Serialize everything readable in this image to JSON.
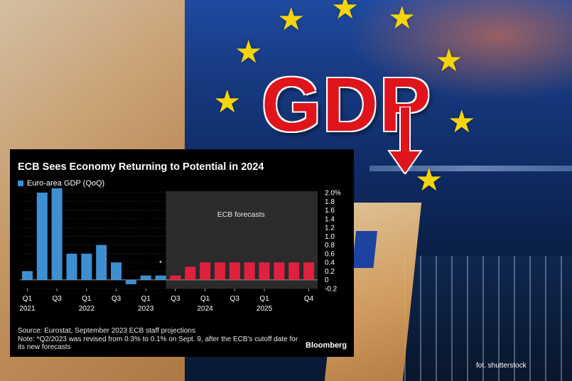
{
  "chart_data": {
    "type": "bar",
    "title": "ECB Sees Economy Returning to Potential in 2024",
    "series": [
      {
        "name": "Euro-area GDP (QoQ)",
        "color": "#3d8fd1",
        "values": [
          0.2,
          2.0,
          2.1,
          0.6,
          0.6,
          0.8,
          0.4,
          -0.1,
          0.1,
          0.1,
          null,
          null,
          null,
          null,
          null,
          null,
          null,
          null,
          null,
          null
        ]
      },
      {
        "color": "#e0203f",
        "values": [
          null,
          null,
          null,
          null,
          null,
          null,
          null,
          null,
          null,
          null,
          0.1,
          0.3,
          0.4,
          0.4,
          0.4,
          0.4,
          0.4,
          0.4,
          0.4,
          0.4
        ]
      }
    ],
    "categories": [
      "2021 Q1",
      "2021 Q2",
      "2021 Q3",
      "2021 Q4",
      "2022 Q1",
      "2022 Q2",
      "2022 Q3",
      "2022 Q4",
      "2023 Q1",
      "2023 Q2",
      "2023 Q3",
      "2023 Q4",
      "2024 Q1",
      "2024 Q2",
      "2024 Q3",
      "2024 Q4",
      "2025 Q1",
      "2025 Q2",
      "2025 Q3",
      "2025 Q4"
    ],
    "x_tick_labels": [
      {
        "index": 0,
        "q": "Q1",
        "year": "2021"
      },
      {
        "index": 2,
        "q": "Q3",
        "year": ""
      },
      {
        "index": 4,
        "q": "Q1",
        "year": "2022"
      },
      {
        "index": 6,
        "q": "Q3",
        "year": ""
      },
      {
        "index": 8,
        "q": "Q1",
        "year": "2023"
      },
      {
        "index": 10,
        "q": "Q3",
        "year": ""
      },
      {
        "index": 12,
        "q": "Q1",
        "year": "2024"
      },
      {
        "index": 14,
        "q": "Q3",
        "year": ""
      },
      {
        "index": 16,
        "q": "Q1",
        "year": "2025"
      },
      {
        "index": 19,
        "q": "Q4",
        "year": ""
      }
    ],
    "y_ticks": [
      2.0,
      1.8,
      1.6,
      1.4,
      1.2,
      1.0,
      0.8,
      0.6,
      0.4,
      0.2,
      0,
      -0.2
    ],
    "y_tick_labels": [
      "2.0%",
      "1.8",
      "1.6",
      "1.4",
      "1.2",
      "1.0",
      "0.8",
      "0.6",
      "0.4",
      "0.2",
      "0",
      "-0.2"
    ],
    "ylim": [
      -0.2,
      2.0
    ],
    "grid": true,
    "forecast_start_index": 10,
    "forecast_label": "ECB forecasts",
    "annotation_marker": {
      "index": 9,
      "text": "*"
    },
    "legend_position": "top-left"
  },
  "source_text": "Source: Eurostat, September 2023 ECB staff projections",
  "note_text": "Note: *Q2/2023 was revised from 0.3% to 0.1% on Sept. 9, after the ECB's cutoff date for its new forecasts",
  "brand": "Bloomberg",
  "headline_graphic": "GDP",
  "photo_credit": "fot. shutterstock",
  "colors": {
    "historic": "#3d8fd1",
    "forecast": "#e0203f",
    "forecast_bg": "#2b2b2b",
    "headline": "#e0141b"
  }
}
